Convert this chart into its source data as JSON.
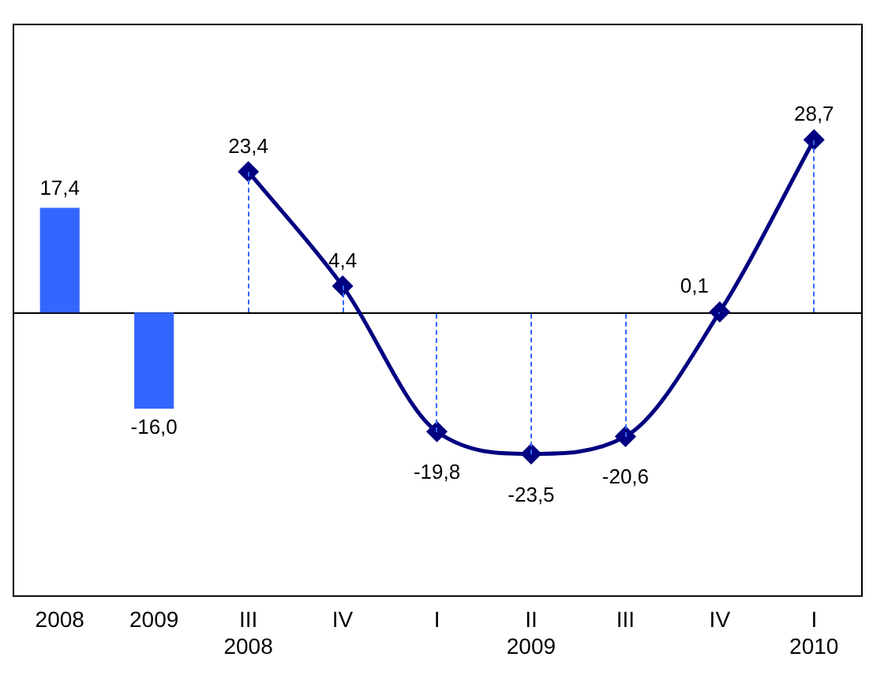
{
  "chart_data": {
    "type": "bar",
    "categories": [
      "2008",
      "2009",
      "III\n2008",
      "IV",
      "I",
      "II\n2009",
      "III",
      "IV",
      "I\n2010"
    ],
    "series": [
      {
        "type": "bar",
        "color": "#3366ff",
        "values": [
          17.4,
          -16.0,
          null,
          null,
          null,
          null,
          null,
          null,
          null
        ],
        "value_labels": [
          "17,4",
          "-16,0",
          null,
          null,
          null,
          null,
          null,
          null,
          null
        ]
      },
      {
        "type": "line",
        "color": "#000080",
        "marker": "diamond",
        "line_style": "solid",
        "values": [
          null,
          null,
          23.4,
          4.4,
          -19.8,
          -23.5,
          -20.6,
          0.1,
          28.7
        ],
        "value_labels": [
          null,
          null,
          "23,4",
          "4,4",
          "-19,8",
          "-23,5",
          "-20,6",
          "0,1",
          "28,7"
        ]
      }
    ],
    "ylim": [
      -47,
      48
    ],
    "tick_labels": "x",
    "grid": false,
    "legend": false
  }
}
